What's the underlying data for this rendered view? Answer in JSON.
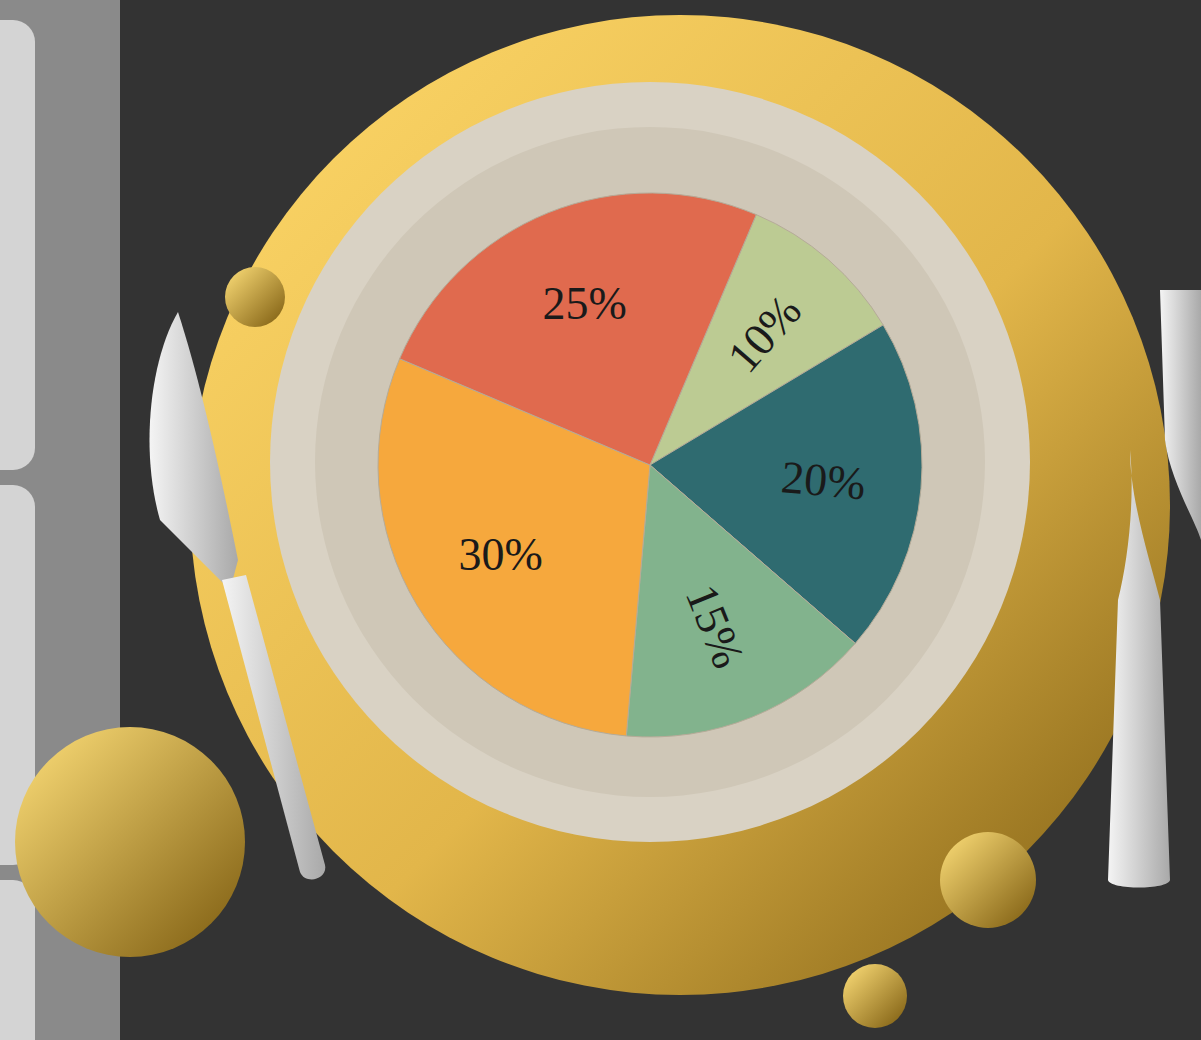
{
  "chart_data": {
    "type": "pie",
    "values": [
      10,
      20,
      15,
      30,
      25
    ],
    "value_labels": [
      "10%",
      "20%",
      "15%",
      "30%",
      "25%"
    ],
    "colors": [
      "#bccb93",
      "#2f6b70",
      "#82b38d",
      "#f6a83d",
      "#e06a4e"
    ],
    "data_labels": true
  }
}
